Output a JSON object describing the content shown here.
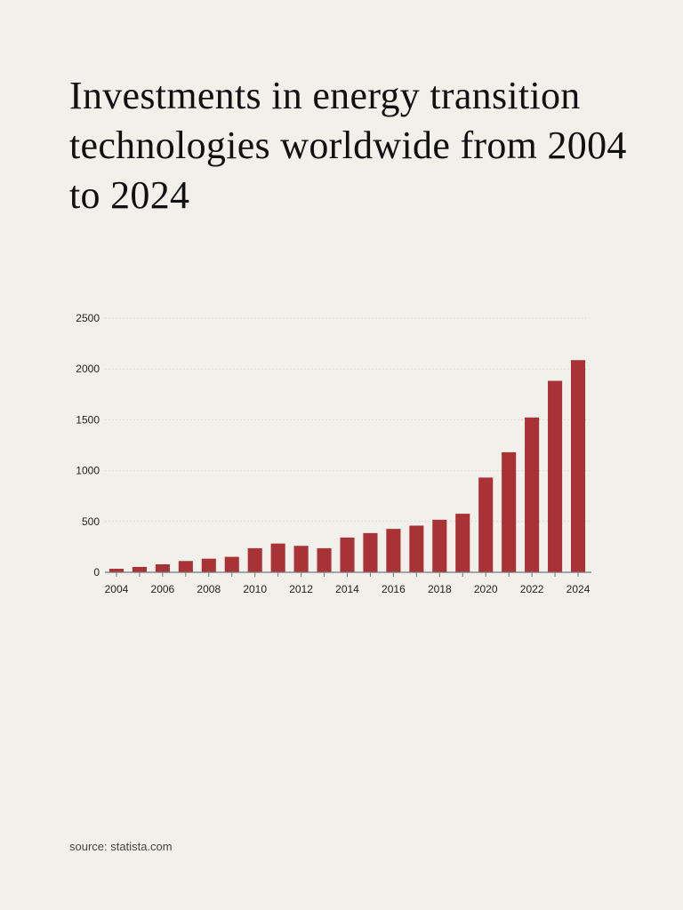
{
  "title": "Investments in energy transition technologies worldwide from 2004 to 2024",
  "source": "source: statista.com",
  "colors": {
    "background": "#f2f0eb",
    "bar": "#a83236",
    "grid": "#d8d6d0",
    "axis": "#777777"
  },
  "chart_data": {
    "type": "bar",
    "title": "Investments in energy transition technologies worldwide from 2004 to 2024",
    "xlabel": "",
    "ylabel": "",
    "categories": [
      "2004",
      "2005",
      "2006",
      "2007",
      "2008",
      "2009",
      "2010",
      "2011",
      "2012",
      "2013",
      "2014",
      "2015",
      "2016",
      "2017",
      "2018",
      "2019",
      "2020",
      "2021",
      "2022",
      "2023",
      "2024"
    ],
    "values": [
      35,
      53,
      79,
      111,
      134,
      152,
      237,
      283,
      260,
      237,
      342,
      386,
      427,
      459,
      517,
      576,
      932,
      1181,
      1523,
      1883,
      2087
    ],
    "xtick_labels": [
      "2004",
      "2006",
      "2008",
      "2010",
      "2012",
      "2014",
      "2016",
      "2018",
      "2020",
      "2022",
      "2024"
    ],
    "yticks": [
      0,
      500,
      1000,
      1500,
      2000,
      2500
    ],
    "ylim": [
      0,
      2500
    ],
    "grid": true,
    "grid_style": "dotted",
    "legend": "none"
  }
}
